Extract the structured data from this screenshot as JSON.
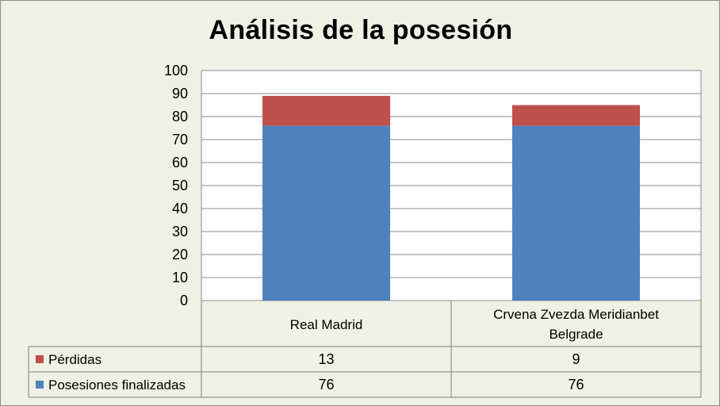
{
  "chart_data": {
    "type": "bar",
    "stacked": true,
    "title": "Análisis de la posesión",
    "categories": [
      "Real Madrid",
      "Crvena Zvezda Meridianbet Belgrade"
    ],
    "series": [
      {
        "name": "Posesiones finalizadas",
        "values": [
          76,
          76
        ],
        "color": "#4f81bd"
      },
      {
        "name": "Pérdidas",
        "values": [
          13,
          9
        ],
        "color": "#c0504d"
      }
    ],
    "ylim": [
      0,
      100
    ],
    "yticks": [
      0,
      10,
      20,
      30,
      40,
      50,
      60,
      70,
      80,
      90,
      100
    ],
    "grid": true,
    "legend": "data-table"
  }
}
